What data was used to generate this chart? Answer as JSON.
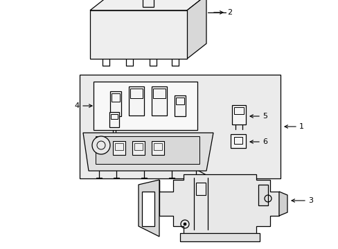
{
  "bg": "#ffffff",
  "lc": "#000000",
  "gray_fill": "#e8e8e8",
  "light_fill": "#f0f0f0",
  "figsize": [
    4.89,
    3.6
  ],
  "dpi": 100
}
